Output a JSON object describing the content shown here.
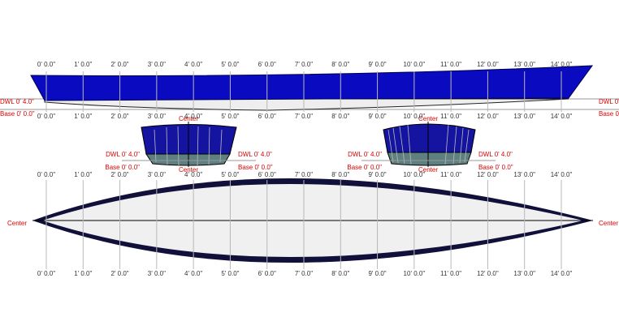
{
  "stations": [
    "0' 0.0\"",
    "1' 0.0\"",
    "2' 0.0\"",
    "3' 0.0\"",
    "4' 0.0\"",
    "5' 0.0\"",
    "6' 0.0\"",
    "7' 0.0\"",
    "8' 0.0\"",
    "9' 0.0\"",
    "10' 0.0\"",
    "11' 0.0\"",
    "12' 0.0\"",
    "13' 0.0\"",
    "14' 0.0\""
  ],
  "labels": {
    "dwl": "DWL 0' 4.0\"",
    "base": "Base 0' 0.0\"",
    "center": "Center"
  }
}
